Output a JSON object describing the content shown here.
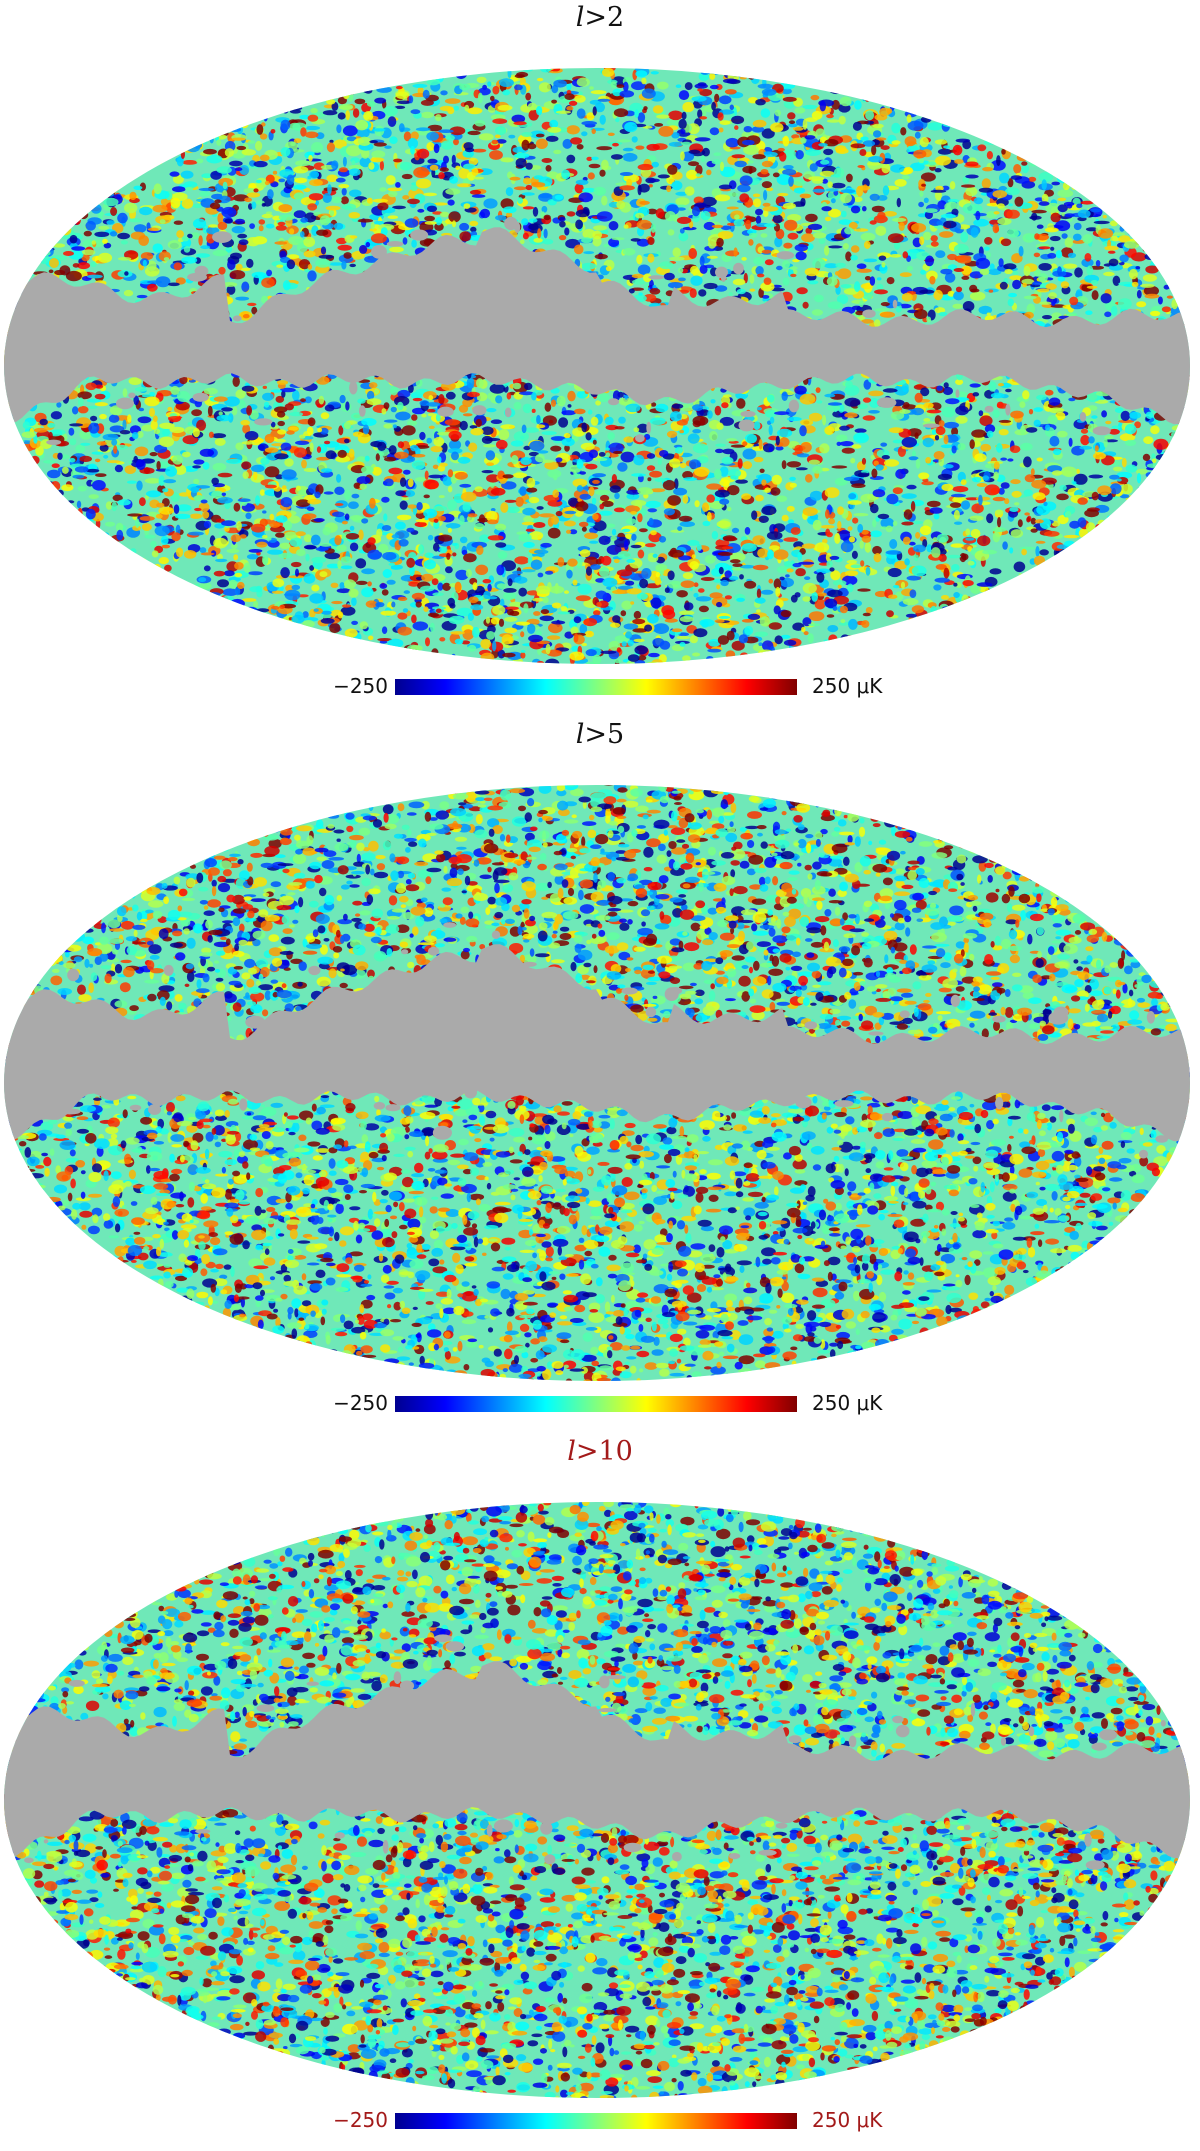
{
  "panels": [
    {
      "title_var": "l",
      "title_rest": ">2",
      "cbar_min": "−250",
      "cbar_max": "250 μK"
    },
    {
      "title_var": "l",
      "title_rest": ">5",
      "cbar_min": "−250",
      "cbar_max": "250 μK"
    },
    {
      "title_var": "l",
      "title_rest": ">10",
      "cbar_min": "−250",
      "cbar_max": "250 μK"
    }
  ],
  "colors": {
    "mask_gray": "#aaaaaa",
    "highlight_red": "#a31a1a",
    "colormap": [
      "#00008f",
      "#0000ff",
      "#0080ff",
      "#00ffff",
      "#80ff80",
      "#ffff00",
      "#ff8000",
      "#ff0000",
      "#800000"
    ]
  }
}
